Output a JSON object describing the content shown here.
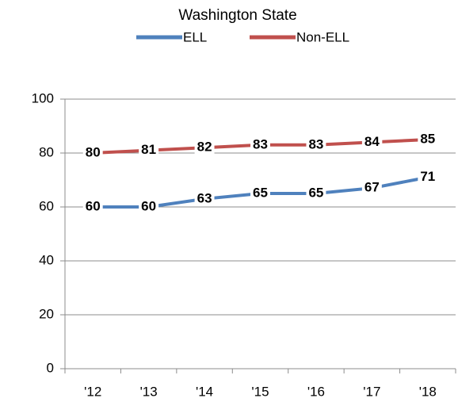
{
  "chart_data": {
    "type": "line",
    "title": "Washington State",
    "categories": [
      "'12",
      "'13",
      "'14",
      "'15",
      "'16",
      "'17",
      "'18"
    ],
    "series": [
      {
        "name": "ELL",
        "color": "#4f81bd",
        "values": [
          60,
          60,
          63,
          65,
          65,
          67,
          71
        ]
      },
      {
        "name": "Non-ELL",
        "color": "#c0504d",
        "values": [
          80,
          81,
          82,
          83,
          83,
          84,
          85
        ]
      }
    ],
    "ylim": [
      0,
      100
    ],
    "yticks": [
      0,
      20,
      40,
      60,
      80,
      100
    ],
    "grid": true,
    "legend": "top"
  }
}
